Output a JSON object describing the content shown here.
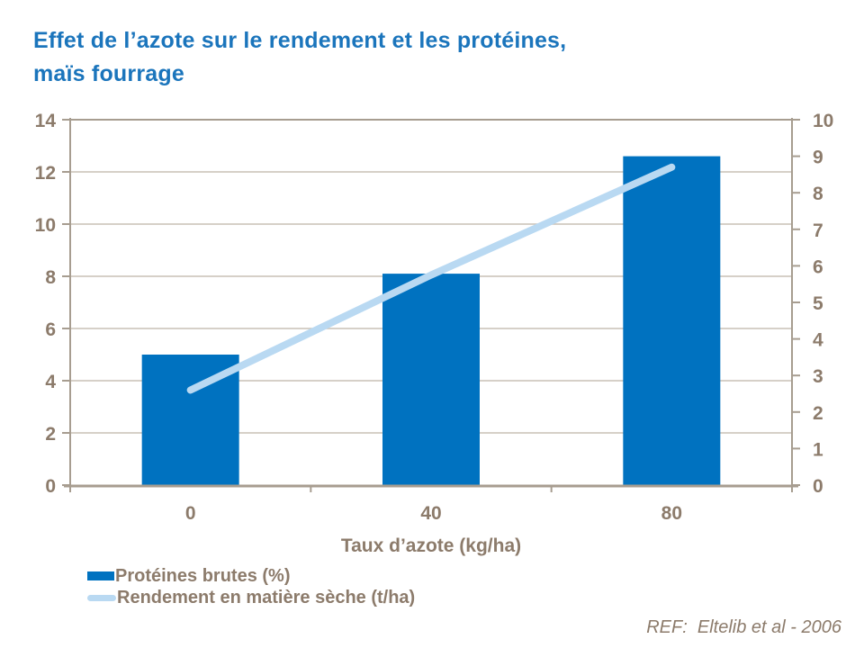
{
  "title": "Effet de l’azote sur le rendement et les protéines,\nmaïs fourrage",
  "colors": {
    "title": "#1B75BC",
    "bar": "#0072C0",
    "line": "#B9D9F2",
    "axis_text": "#8C7B6B",
    "axis_line": "#A79D90",
    "gridline": "#C9C0B6",
    "background": "#FFFFFF"
  },
  "chart_data": {
    "type": "combo",
    "categories": [
      "0",
      "40",
      "80"
    ],
    "series": [
      {
        "name": "Protéines brutes (%)",
        "type": "bar",
        "axis": "left",
        "values": [
          5.0,
          8.1,
          12.6
        ]
      },
      {
        "name": "Rendement en matière sèche (t/ha)",
        "type": "line",
        "axis": "right",
        "values": [
          2.6,
          5.75,
          8.7
        ]
      }
    ],
    "xlabel": "Taux d’azote (kg/ha)",
    "left_axis": {
      "min": 0,
      "max": 14,
      "step": 2,
      "ticks": [
        "0",
        "2",
        "4",
        "6",
        "8",
        "10",
        "12",
        "14"
      ]
    },
    "right_axis": {
      "min": 0,
      "max": 10,
      "step": 1,
      "ticks": [
        "0",
        "1",
        "2",
        "3",
        "4",
        "5",
        "6",
        "7",
        "8",
        "9",
        "10"
      ]
    },
    "grid": true,
    "legend_position": "bottom-left"
  },
  "footer": {
    "reference": "REF:  Eltelib et al - 2006"
  }
}
